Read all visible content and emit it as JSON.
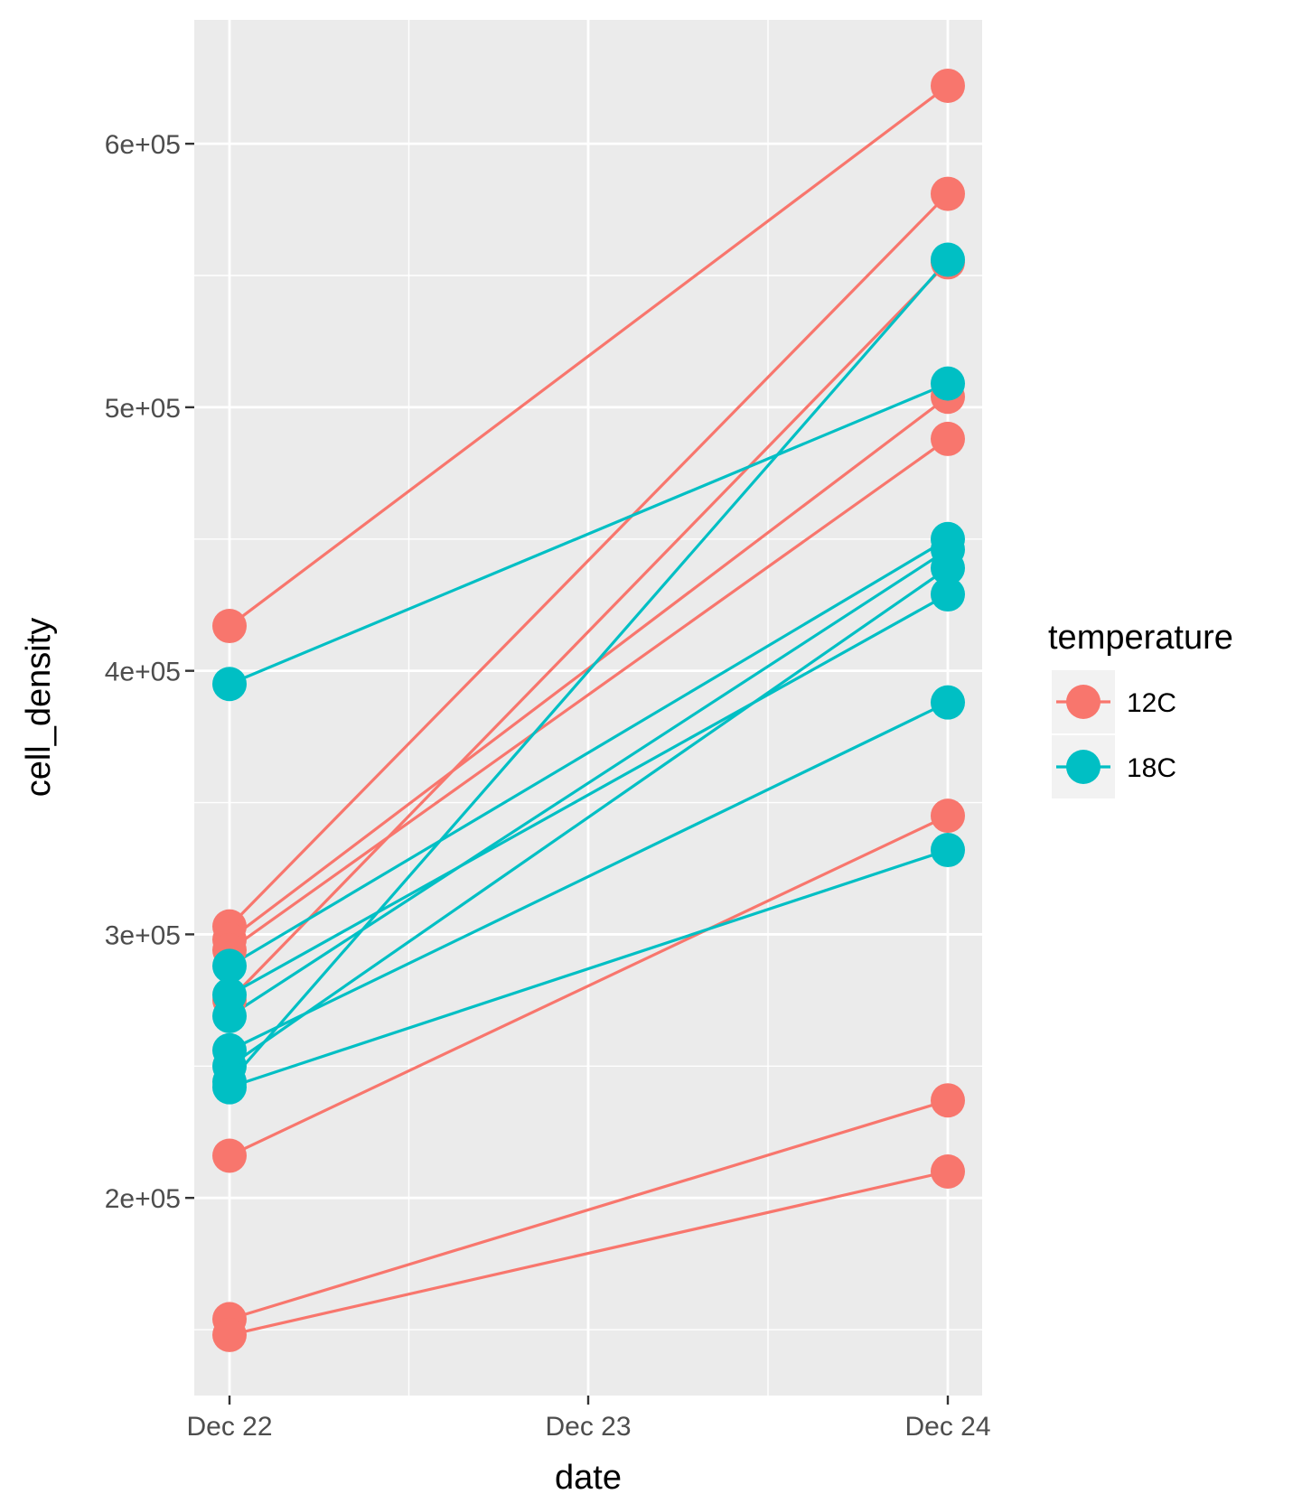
{
  "chart_data": {
    "type": "line",
    "title": "",
    "xlabel": "date",
    "ylabel": "cell_density",
    "x_categories": [
      "Dec 22",
      "Dec 23",
      "Dec 24"
    ],
    "y_ticks": [
      200000,
      300000,
      400000,
      500000,
      600000
    ],
    "y_tick_labels": [
      "2e+05",
      "3e+05",
      "4e+05",
      "5e+05",
      "6e+05"
    ],
    "ylim": [
      125000,
      647000
    ],
    "grid": true,
    "legend": {
      "title": "temperature",
      "placement": "right",
      "entries": [
        {
          "label": "12C",
          "color": "#F8766D"
        },
        {
          "label": "18C",
          "color": "#00BFC4"
        }
      ]
    },
    "series": [
      {
        "group": "12C",
        "color": "#F8766D",
        "x": [
          "Dec 22",
          "Dec 24"
        ],
        "y": [
          417000,
          622000
        ]
      },
      {
        "group": "12C",
        "color": "#F8766D",
        "x": [
          "Dec 22",
          "Dec 24"
        ],
        "y": [
          303000,
          581000
        ]
      },
      {
        "group": "12C",
        "color": "#F8766D",
        "x": [
          "Dec 22",
          "Dec 24"
        ],
        "y": [
          275000,
          555000
        ]
      },
      {
        "group": "12C",
        "color": "#F8766D",
        "x": [
          "Dec 22",
          "Dec 24"
        ],
        "y": [
          298000,
          504000
        ]
      },
      {
        "group": "12C",
        "color": "#F8766D",
        "x": [
          "Dec 22",
          "Dec 24"
        ],
        "y": [
          294000,
          488000
        ]
      },
      {
        "group": "12C",
        "color": "#F8766D",
        "x": [
          "Dec 22",
          "Dec 24"
        ],
        "y": [
          216000,
          345000
        ]
      },
      {
        "group": "12C",
        "color": "#F8766D",
        "x": [
          "Dec 22",
          "Dec 24"
        ],
        "y": [
          154000,
          237000
        ]
      },
      {
        "group": "12C",
        "color": "#F8766D",
        "x": [
          "Dec 22",
          "Dec 24"
        ],
        "y": [
          148000,
          210000
        ]
      },
      {
        "group": "18C",
        "color": "#00BFC4",
        "x": [
          "Dec 22",
          "Dec 24"
        ],
        "y": [
          395000,
          509000
        ]
      },
      {
        "group": "18C",
        "color": "#00BFC4",
        "x": [
          "Dec 22",
          "Dec 24"
        ],
        "y": [
          244000,
          556000
        ]
      },
      {
        "group": "18C",
        "color": "#00BFC4",
        "x": [
          "Dec 22",
          "Dec 24"
        ],
        "y": [
          288000,
          450000
        ]
      },
      {
        "group": "18C",
        "color": "#00BFC4",
        "x": [
          "Dec 22",
          "Dec 24"
        ],
        "y": [
          269000,
          446000
        ]
      },
      {
        "group": "18C",
        "color": "#00BFC4",
        "x": [
          "Dec 22",
          "Dec 24"
        ],
        "y": [
          250000,
          439000
        ]
      },
      {
        "group": "18C",
        "color": "#00BFC4",
        "x": [
          "Dec 22",
          "Dec 24"
        ],
        "y": [
          277000,
          429000
        ]
      },
      {
        "group": "18C",
        "color": "#00BFC4",
        "x": [
          "Dec 22",
          "Dec 24"
        ],
        "y": [
          256000,
          388000
        ]
      },
      {
        "group": "18C",
        "color": "#00BFC4",
        "x": [
          "Dec 22",
          "Dec 24"
        ],
        "y": [
          242000,
          332000
        ]
      }
    ]
  }
}
